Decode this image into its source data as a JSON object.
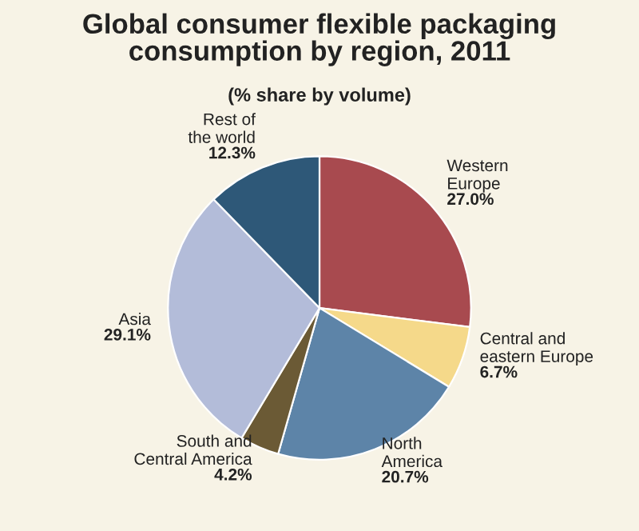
{
  "chart_data": {
    "type": "pie",
    "title": "Global consumer flexible packaging\nconsumption by region, 2011",
    "subtitle": "(% share by volume)",
    "categories": [
      "Western\nEurope",
      "Central and\neastern Europe",
      "North\nAmerica",
      "South and\nCentral America",
      "Asia",
      "Rest of\nthe world"
    ],
    "values": [
      27.0,
      6.7,
      20.7,
      4.2,
      29.1,
      12.3
    ],
    "value_labels": [
      "27.0%",
      "6.7%",
      "20.7%",
      "4.2%",
      "29.1%",
      "12.3%"
    ],
    "colors": [
      "#a84a4f",
      "#f5d98a",
      "#5d84a8",
      "#6b5a35",
      "#b3bcd9",
      "#2e5878"
    ]
  }
}
